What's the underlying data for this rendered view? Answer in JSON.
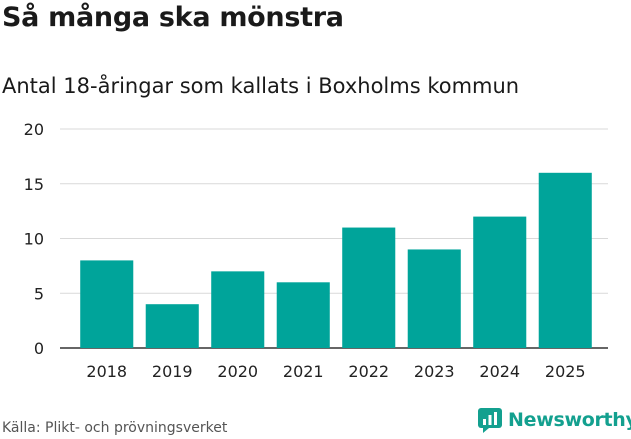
{
  "title": "Så många ska mönstra",
  "subtitle": "Antal 18-åringar som kallats i Boxholms kommun",
  "source": "Källa: Plikt- och prövningsverket",
  "brand": "Newsworthy",
  "colors": {
    "bar": "#00a49a",
    "brand": "#13a08f",
    "grid": "#d9d9d9"
  },
  "chart_data": {
    "type": "bar",
    "categories": [
      "2018",
      "2019",
      "2020",
      "2021",
      "2022",
      "2023",
      "2024",
      "2025"
    ],
    "values": [
      8,
      4,
      7,
      6,
      11,
      9,
      12,
      16
    ],
    "ylim": [
      0,
      20
    ],
    "yticks": [
      0,
      5,
      10,
      15,
      20
    ],
    "grid": true
  }
}
